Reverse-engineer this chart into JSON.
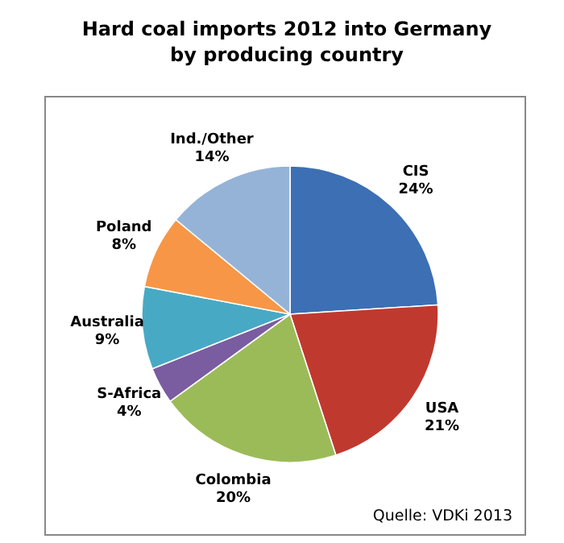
{
  "chart_data": {
    "type": "pie",
    "title": "Hard coal imports 2012 into Germany",
    "subtitle": "by producing country",
    "categories": [
      "CIS",
      "USA",
      "Colombia",
      "S-Africa",
      "Australia",
      "Poland",
      "Ind./Other"
    ],
    "values": [
      24,
      21,
      20,
      4,
      9,
      8,
      14
    ],
    "value_labels": [
      "24%",
      "21%",
      "20%",
      "4%",
      "9%",
      "8%",
      "14%"
    ],
    "colors": [
      "#3c6fb4",
      "#c0392f",
      "#9bbb59",
      "#7a5ca0",
      "#48a9c5",
      "#f79646",
      "#95b3d7"
    ],
    "annotations": [
      "Quelle: VDKi 2013"
    ]
  }
}
